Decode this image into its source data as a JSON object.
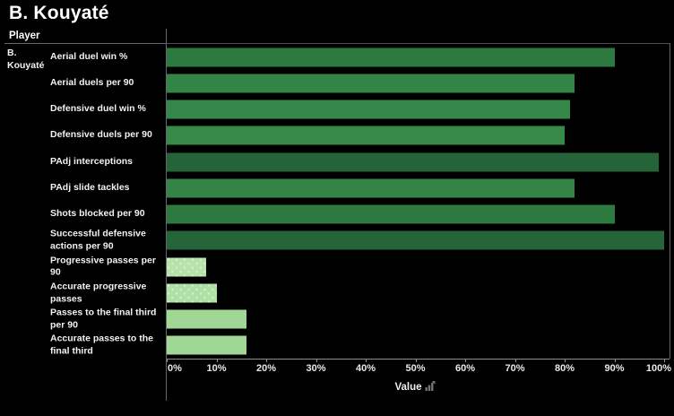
{
  "title": "B. Kouyaté",
  "header": {
    "player_label": "Player"
  },
  "player": "B. Kouyaté",
  "axis": {
    "label": "Value",
    "sort_icon": "sort-icon"
  },
  "colors": {
    "background": "#000000",
    "text": "#f2f2f2",
    "grid": "#62676d",
    "axis_line": "#8b9097",
    "bar_dark_green": "#266539",
    "bar_medium_green": "#348447",
    "bar_light_green": "#a0d794",
    "bar_light_dotted": "#b2e0a8"
  },
  "chart_data": {
    "type": "bar",
    "orientation": "horizontal",
    "title": "B. Kouyaté",
    "xlabel": "Value",
    "ylabel": "Player",
    "xlim": [
      0,
      100
    ],
    "x_tick_labels": [
      "0%",
      "10%",
      "20%",
      "30%",
      "40%",
      "50%",
      "60%",
      "70%",
      "80%",
      "90%",
      "100%"
    ],
    "grid": false,
    "categories": [
      "Aerial duel win %",
      "Aerial duels per 90",
      "Defensive duel win %",
      "Defensive duels per 90",
      "PAdj interceptions",
      "PAdj slide tackles",
      "Shots blocked per 90",
      "Successful defensive actions per 90",
      "Progressive passes per 90",
      "Accurate progressive passes",
      "Passes to the final third per 90",
      "Accurate passes to the final third"
    ],
    "values": [
      90,
      82,
      81,
      80,
      99,
      82,
      90,
      100,
      8,
      10,
      16,
      16
    ],
    "bar_colors": [
      "#2d7a40",
      "#348447",
      "#36884a",
      "#37894a",
      "#256338",
      "#348447",
      "#2d7a40",
      "#266539",
      "#b5e3ab",
      "#afe0a5",
      "#a0d794",
      "#a0d794"
    ],
    "textured": [
      false,
      false,
      false,
      false,
      false,
      false,
      false,
      false,
      true,
      true,
      false,
      false
    ]
  }
}
